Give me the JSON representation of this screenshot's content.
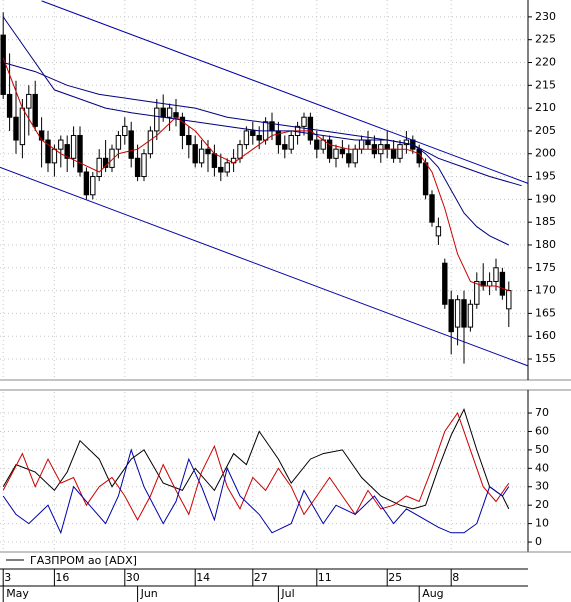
{
  "chart_data": [
    {
      "type": "candlestick",
      "x": [
        0,
        1,
        2,
        3,
        4,
        5,
        6,
        7,
        8,
        9,
        10,
        11,
        12,
        13,
        14,
        15,
        16,
        17,
        18,
        19,
        20,
        21,
        22,
        23,
        24,
        25,
        26,
        27,
        28,
        29,
        30,
        31,
        32,
        33,
        34,
        35,
        36,
        37,
        38,
        39,
        40,
        41,
        42,
        43,
        44,
        45,
        46,
        47,
        48,
        49,
        50,
        51,
        52,
        53,
        54,
        55,
        56,
        57,
        58,
        59,
        60,
        61,
        62,
        63,
        64,
        65,
        66,
        67,
        68,
        69,
        70,
        71,
        72,
        73,
        74,
        75,
        76,
        77,
        78,
        79
      ],
      "open": [
        226,
        213,
        208,
        202,
        210,
        213,
        205,
        203,
        198,
        201,
        202,
        199,
        204,
        196,
        191,
        195,
        199,
        197,
        201,
        204,
        205,
        199,
        195,
        200,
        205,
        210,
        208,
        209,
        208,
        204,
        202,
        198,
        201,
        200,
        197,
        196,
        198,
        199,
        202,
        205,
        204,
        203,
        207,
        205,
        202,
        201,
        204,
        206,
        208,
        203,
        201,
        203,
        199,
        201,
        200,
        198,
        201,
        203,
        202,
        200,
        202,
        201,
        199,
        202,
        203,
        201,
        198,
        191,
        182,
        176,
        168,
        162,
        168,
        162,
        167,
        172,
        171,
        172,
        174,
        166
      ],
      "high": [
        231,
        222,
        216,
        212,
        215,
        216,
        208,
        205,
        202,
        204,
        204,
        206,
        206,
        197,
        196,
        201,
        203,
        202,
        205,
        208,
        207,
        202,
        201,
        206,
        212,
        213,
        211,
        212,
        209,
        206,
        204,
        203,
        203,
        202,
        200,
        199,
        201,
        203,
        206,
        207,
        206,
        208,
        209,
        207,
        204,
        205,
        207,
        209,
        209,
        205,
        204,
        204,
        202,
        203,
        202,
        202,
        204,
        205,
        204,
        203,
        205,
        203,
        203,
        205,
        204,
        202,
        199,
        192,
        186,
        177,
        170,
        169,
        170,
        168,
        174,
        176,
        174,
        177,
        175,
        172
      ],
      "low": [
        212,
        205,
        200,
        199,
        204,
        205,
        197,
        196,
        195,
        197,
        196,
        197,
        195,
        190,
        190,
        194,
        196,
        196,
        199,
        202,
        197,
        194,
        194,
        199,
        203,
        207,
        205,
        206,
        201,
        199,
        197,
        197,
        196,
        195,
        194,
        195,
        196,
        198,
        201,
        202,
        201,
        202,
        203,
        200,
        199,
        200,
        202,
        204,
        202,
        199,
        200,
        198,
        197,
        199,
        197,
        197,
        200,
        201,
        199,
        198,
        199,
        198,
        198,
        200,
        200,
        197,
        190,
        184,
        180,
        166,
        156,
        158,
        154,
        161,
        166,
        170,
        169,
        170,
        168,
        162
      ],
      "close": [
        213,
        208,
        203,
        210,
        213,
        206,
        203,
        198,
        201,
        203,
        199,
        204,
        196,
        191,
        195,
        199,
        197,
        201,
        204,
        206,
        199,
        195,
        200,
        205,
        210,
        208,
        210,
        208,
        204,
        202,
        198,
        201,
        200,
        197,
        196,
        198,
        199,
        202,
        205,
        204,
        203,
        207,
        205,
        202,
        201,
        204,
        206,
        208,
        203,
        201,
        203,
        199,
        201,
        200,
        198,
        201,
        203,
        202,
        200,
        202,
        201,
        199,
        202,
        203,
        201,
        198,
        191,
        185,
        184,
        167,
        161,
        168,
        162,
        167,
        172,
        171,
        172,
        175,
        169,
        170
      ],
      "up_color": "#ffffff",
      "down_color": "#000000",
      "overlays": [
        {
          "color": "#cc0000",
          "x": [
            0,
            3,
            6,
            9,
            12,
            15,
            18,
            21,
            24,
            27,
            30,
            33,
            36,
            39,
            42,
            45,
            48,
            51,
            54,
            57,
            60,
            63,
            65,
            67,
            69,
            71,
            73,
            75,
            77,
            79
          ],
          "values": [
            221,
            210,
            203,
            200,
            198,
            196,
            200,
            201,
            204,
            208,
            205,
            200,
            198,
            201,
            204,
            205,
            205,
            202,
            201,
            201,
            201,
            201,
            200,
            196,
            188,
            178,
            172,
            171,
            171,
            170
          ]
        },
        {
          "color": "#000080",
          "x": [
            0,
            4,
            8,
            12,
            16,
            20,
            25,
            30,
            35,
            40,
            45,
            50,
            55,
            60,
            64,
            66,
            68,
            70,
            72,
            74,
            76,
            79
          ],
          "values": [
            230,
            222,
            214,
            212,
            210,
            209,
            208,
            207,
            206,
            205,
            205,
            204,
            203,
            203,
            202,
            200,
            197,
            192,
            187,
            184,
            182,
            180
          ]
        },
        {
          "color": "#000080",
          "x": [
            0,
            5,
            10,
            15,
            20,
            25,
            30,
            35,
            40,
            45,
            50,
            55,
            60,
            64,
            68,
            72,
            76,
            81
          ],
          "values": [
            220,
            218,
            215,
            213,
            212,
            211,
            210,
            208,
            207,
            206,
            205,
            204,
            203,
            202,
            199,
            197,
            195,
            193
          ]
        },
        {
          "color": "#0000aa",
          "x": [
            6,
            82
          ],
          "values": [
            233.5,
            193.5
          ]
        },
        {
          "color": "#0000aa",
          "x": [
            -0.5,
            82
          ],
          "values": [
            197,
            153.5
          ]
        }
      ],
      "xlim": [
        -0.5,
        82
      ],
      "ylim": [
        150.4,
        233.7
      ],
      "yticks": [
        155,
        160,
        165,
        170,
        175,
        180,
        185,
        190,
        195,
        200,
        205,
        210,
        215,
        220,
        225,
        230
      ],
      "grid": true
    },
    {
      "type": "line",
      "legend": "ГАЗПРОМ ао [ADX]",
      "series": [
        {
          "color": "#000000",
          "x": [
            0,
            2,
            5,
            8,
            10,
            12,
            15,
            17,
            20,
            22,
            25,
            28,
            30,
            33,
            36,
            38,
            40,
            43,
            45,
            48,
            50,
            53,
            56,
            59,
            62,
            64,
            66,
            68,
            70,
            72,
            74,
            76,
            78,
            79
          ],
          "values": [
            30,
            42,
            38,
            28,
            38,
            55,
            45,
            30,
            45,
            50,
            32,
            28,
            40,
            28,
            48,
            42,
            60,
            45,
            32,
            45,
            48,
            50,
            35,
            25,
            20,
            18,
            20,
            40,
            58,
            72,
            50,
            30,
            25,
            18
          ]
        },
        {
          "color": "#cc0000",
          "x": [
            0,
            3,
            5,
            7,
            9,
            11,
            13,
            15,
            17,
            19,
            21,
            23,
            25,
            27,
            29,
            31,
            33,
            35,
            37,
            39,
            41,
            43,
            45,
            47,
            49,
            51,
            53,
            55,
            57,
            59,
            61,
            63,
            65,
            67,
            69,
            71,
            73,
            75,
            77,
            79
          ],
          "values": [
            28,
            48,
            30,
            45,
            32,
            35,
            20,
            30,
            35,
            25,
            12,
            25,
            42,
            28,
            15,
            38,
            52,
            30,
            18,
            35,
            28,
            40,
            30,
            15,
            25,
            35,
            25,
            15,
            28,
            18,
            20,
            25,
            22,
            40,
            60,
            70,
            50,
            30,
            22,
            32
          ]
        },
        {
          "color": "#0000aa",
          "x": [
            0,
            2,
            4,
            7,
            9,
            11,
            14,
            16,
            18,
            20,
            22,
            25,
            27,
            29,
            31,
            33,
            35,
            37,
            40,
            42,
            45,
            47,
            50,
            52,
            55,
            58,
            61,
            63,
            66,
            68,
            70,
            72,
            74,
            76,
            78,
            79
          ],
          "values": [
            25,
            15,
            10,
            20,
            5,
            30,
            18,
            10,
            25,
            50,
            30,
            10,
            22,
            45,
            30,
            12,
            40,
            25,
            15,
            5,
            10,
            28,
            10,
            20,
            15,
            25,
            10,
            18,
            12,
            8,
            5,
            5,
            10,
            30,
            25,
            30
          ]
        }
      ],
      "xlim": [
        -0.5,
        82
      ],
      "ylim": [
        -5.4,
        81.4
      ],
      "yticks": [
        0,
        10,
        20,
        30,
        40,
        50,
        60,
        70
      ],
      "grid": true,
      "xticks": [
        {
          "value": 0,
          "label": "3"
        },
        {
          "value": 8,
          "label": "16"
        },
        {
          "value": 19,
          "label": "30"
        },
        {
          "value": 30,
          "label": "14"
        },
        {
          "value": 39,
          "label": "27"
        },
        {
          "value": 49,
          "label": "11"
        },
        {
          "value": 60,
          "label": "25"
        },
        {
          "value": 70,
          "label": "8"
        }
      ],
      "month_ticks": [
        {
          "value": 0,
          "label": "May"
        },
        {
          "value": 21,
          "label": "Jun"
        },
        {
          "value": 43,
          "label": "Jul"
        },
        {
          "value": 65,
          "label": "Aug"
        }
      ]
    }
  ]
}
